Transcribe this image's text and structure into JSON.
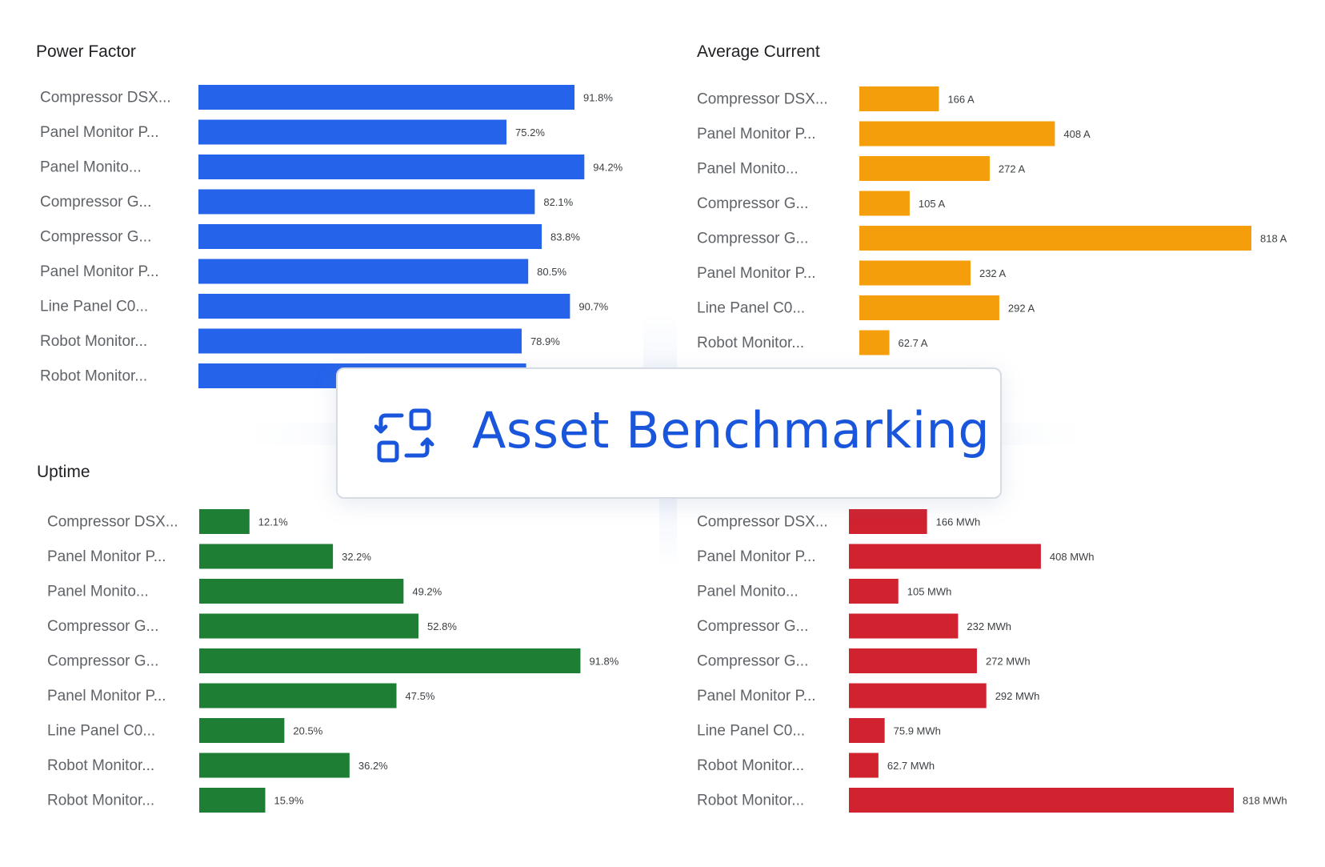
{
  "overlay": {
    "title": "Asset Benchmarking",
    "icon": "compare-arrows-icon",
    "title_color": "#1a56db"
  },
  "chart_data": [
    {
      "type": "bar",
      "orientation": "horizontal",
      "title": "Power Factor",
      "color": "#2563eb",
      "categories": [
        "Compressor DSX...",
        "Panel Monitor P...",
        "Panel Monito...",
        "Compressor G...",
        "Compressor G...",
        "Panel Monitor P...",
        "Line Panel C0...",
        "Robot Monitor...",
        "Robot Monitor..."
      ],
      "values": [
        91.8,
        75.2,
        94.2,
        82.1,
        83.8,
        80.5,
        90.7,
        78.9,
        80
      ],
      "labels": [
        "91.8%",
        "75.2%",
        "94.2%",
        "82.1%",
        "83.8%",
        "80.5%",
        "90.7%",
        "78.9%",
        ""
      ],
      "xlim": [
        0,
        100
      ]
    },
    {
      "type": "bar",
      "orientation": "horizontal",
      "title": "Average Current",
      "color": "#f59e0b",
      "categories": [
        "Compressor DSX...",
        "Panel Monitor P...",
        "Panel Monito...",
        "Compressor G...",
        "Compressor G...",
        "Panel Monitor P...",
        "Line Panel C0...",
        "Robot Monitor..."
      ],
      "values": [
        166,
        408,
        272,
        105,
        818,
        232,
        292,
        62.7
      ],
      "labels": [
        "166 A",
        "408 A",
        "272 A",
        "105 A",
        "818 A",
        "232 A",
        "292 A",
        "62.7 A"
      ],
      "xlim": [
        0,
        818
      ]
    },
    {
      "type": "bar",
      "orientation": "horizontal",
      "title": "Uptime",
      "color": "#1e7e34",
      "categories": [
        "Compressor DSX...",
        "Panel Monitor P...",
        "Panel Monito...",
        "Compressor G...",
        "Compressor G...",
        "Panel Monitor P...",
        "Line Panel C0...",
        "Robot Monitor...",
        "Robot Monitor..."
      ],
      "values": [
        12.1,
        32.2,
        49.2,
        52.8,
        91.8,
        47.5,
        20.5,
        36.2,
        15.9
      ],
      "labels": [
        "12.1%",
        "32.2%",
        "49.2%",
        "52.8%",
        "91.8%",
        "47.5%",
        "20.5%",
        "36.2%",
        "15.9%"
      ],
      "xlim": [
        0,
        100
      ]
    },
    {
      "type": "bar",
      "orientation": "horizontal",
      "title": "",
      "color": "#d0222f",
      "categories": [
        "Compressor DSX...",
        "Panel Monitor P...",
        "Panel Monito...",
        "Compressor G...",
        "Compressor G...",
        "Panel Monitor P...",
        "Line Panel C0...",
        "Robot Monitor...",
        "Robot Monitor..."
      ],
      "values": [
        166,
        408,
        105,
        232,
        272,
        292,
        75.9,
        62.7,
        818
      ],
      "labels": [
        "166 MWh",
        "408 MWh",
        "105 MWh",
        "232 MWh",
        "272 MWh",
        "292 MWh",
        "75.9 MWh",
        "62.7 MWh",
        "818 MWh"
      ],
      "xlim": [
        0,
        818
      ]
    }
  ]
}
